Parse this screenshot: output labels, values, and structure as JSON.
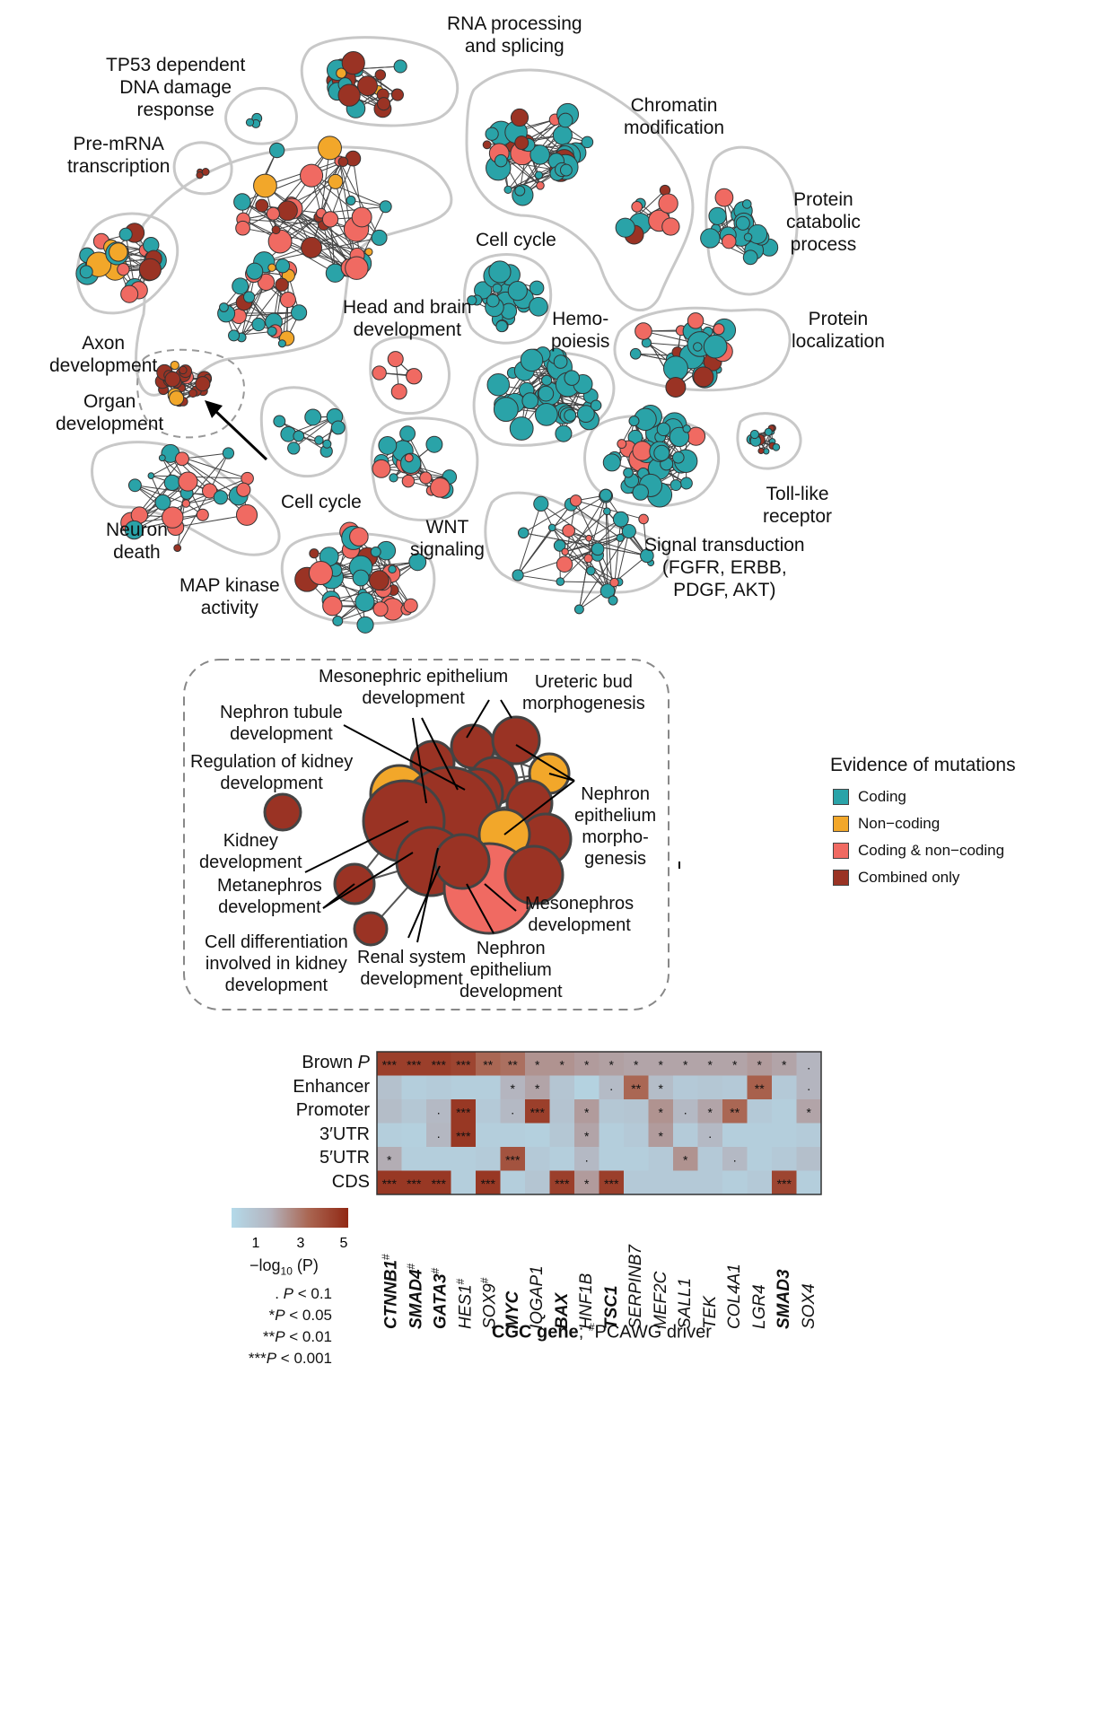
{
  "colors": {
    "coding": "#2aa3a8",
    "noncoding": "#f2a72a",
    "both": "#f06a62",
    "combined": "#9a3324",
    "blob": "#c8c8c8",
    "edge": "#444444"
  },
  "clusters": [
    {
      "id": "tp53",
      "label": "TP53 dependent\nDNA damage\nresponse"
    },
    {
      "id": "rna",
      "label": "RNA processing\nand splicing"
    },
    {
      "id": "chromatin",
      "label": "Chromatin\nmodification"
    },
    {
      "id": "premrna",
      "label": "Pre-mRNA\ntranscription"
    },
    {
      "id": "protcat",
      "label": "Protein\ncatabolic\nprocess"
    },
    {
      "id": "cellcycle1",
      "label": "Cell cycle"
    },
    {
      "id": "axon",
      "label": "Axon\ndevelopment"
    },
    {
      "id": "headbrain",
      "label": "Head and brain\ndevelopment"
    },
    {
      "id": "protloc",
      "label": "Protein\nlocalization"
    },
    {
      "id": "hemo",
      "label": "Hemo-\npoiesis"
    },
    {
      "id": "organ",
      "label": "Organ\ndevelopment"
    },
    {
      "id": "cellcycle2",
      "label": "Cell cycle"
    },
    {
      "id": "tolllike",
      "label": "Toll-like\nreceptor"
    },
    {
      "id": "neuron",
      "label": "Neuron\ndeath"
    },
    {
      "id": "wnt",
      "label": "WNT\nsignaling"
    },
    {
      "id": "signal",
      "label": "Signal transduction\n(FGFR, ERBB,\nPDGF, AKT)"
    },
    {
      "id": "mapk",
      "label": "MAP kinase\nactivity"
    }
  ],
  "legend": {
    "title": "Evidence of mutations",
    "items": [
      "Coding",
      "Non−coding",
      "Coding & non−coding",
      "Combined only"
    ]
  },
  "zoom_labels": [
    "Mesonephric epithelium\ndevelopment",
    "Ureteric bud\nmorphogenesis",
    "Nephron tubule\ndevelopment",
    "Regulation of kidney\ndevelopment",
    "Nephron\nepithelium\nmorpho-\ngenesis",
    "Kidney\ndevelopment",
    "Metanephros\ndevelopment",
    "Mesonephros\ndevelopment",
    "Cell differentiation\ninvolved in kidney\ndevelopment",
    "Renal system\ndevelopment",
    "Nephron\nepithelium\ndevelopment"
  ],
  "chart_data": {
    "type": "heatmap",
    "rows": [
      "Brown P",
      "Enhancer",
      "Promoter",
      "3′UTR",
      "5′UTR",
      "CDS"
    ],
    "columns": [
      "CTNNB1#",
      "SMAD4#",
      "GATA3#",
      "HES1#",
      "SOX9#",
      "MYC",
      "IQGAP1",
      "BAX",
      "HNF1B",
      "TSC1",
      "SERPINB7",
      "MEF2C",
      "SALL1",
      "TEK",
      "COL4A1",
      "LGR4",
      "SMAD3",
      "SOX4"
    ],
    "bold_columns": [
      "CTNNB1#",
      "SMAD4#",
      "GATA3#",
      "MYC",
      "BAX",
      "TSC1",
      "SMAD3"
    ],
    "values": [
      [
        4.8,
        4.8,
        4.8,
        4.6,
        3.6,
        3.4,
        2.6,
        2.6,
        2.4,
        2.3,
        2.2,
        2.2,
        2.2,
        2.2,
        2.2,
        2.4,
        2.2,
        1.8
      ],
      [
        1.2,
        0.6,
        0.7,
        0.6,
        0.6,
        1.8,
        2.2,
        1.0,
        0.4,
        1.5,
        3.6,
        1.4,
        0.8,
        0.9,
        0.8,
        3.8,
        0.8,
        1.8
      ],
      [
        1.4,
        0.9,
        1.6,
        5.0,
        0.8,
        1.6,
        4.8,
        1.1,
        2.4,
        0.9,
        1.0,
        2.6,
        1.6,
        2.2,
        3.6,
        0.8,
        0.6,
        2.2
      ],
      [
        0.6,
        0.5,
        1.7,
        5.0,
        0.6,
        0.6,
        0.5,
        0.9,
        2.2,
        0.6,
        0.8,
        2.4,
        0.7,
        1.6,
        0.6,
        0.6,
        0.6,
        0.7
      ],
      [
        2.0,
        0.6,
        0.6,
        0.6,
        0.7,
        4.2,
        0.8,
        0.6,
        1.6,
        0.6,
        0.6,
        0.8,
        2.6,
        0.8,
        1.6,
        0.6,
        0.8,
        1.3
      ],
      [
        5.0,
        5.0,
        5.0,
        0.6,
        5.0,
        0.6,
        1.0,
        4.8,
        2.4,
        4.8,
        0.8,
        0.8,
        0.8,
        0.8,
        0.6,
        0.8,
        4.6,
        0.6
      ]
    ],
    "stars": [
      [
        "***",
        "***",
        "***",
        "***",
        "**",
        "**",
        "*",
        "*",
        "*",
        "*",
        "*",
        "*",
        "*",
        "*",
        "*",
        "*",
        "*",
        "."
      ],
      [
        "",
        "",
        "",
        "",
        "",
        "*",
        "*",
        "",
        "",
        "·",
        "**",
        "*",
        "",
        "",
        "",
        "**",
        "",
        "·"
      ],
      [
        "",
        "",
        "·",
        "***",
        "",
        "·",
        "***",
        "",
        "*",
        "",
        "",
        "*",
        "·",
        "*",
        "**",
        "",
        "",
        "*"
      ],
      [
        "",
        "",
        "·",
        "***",
        "",
        "",
        "",
        "",
        "*",
        "",
        "",
        "*",
        "",
        "·",
        "",
        "",
        "",
        ""
      ],
      [
        "*",
        "",
        "",
        "",
        "",
        "***",
        "",
        "",
        "·",
        "",
        "",
        "",
        "*",
        "",
        "·",
        "",
        "",
        ""
      ],
      [
        "***",
        "***",
        "***",
        "",
        "***",
        "",
        "",
        "***",
        "*",
        "***",
        "",
        "",
        "",
        "",
        "",
        "",
        "***",
        ""
      ]
    ],
    "colorbar": {
      "ticks": [
        "1",
        "3",
        "5"
      ],
      "label": "−log10 (P)",
      "min": 0,
      "max": 5.5
    },
    "significance": [
      ". P < 0.1",
      "*P < 0.05",
      "**P < 0.01",
      "***P < 0.001"
    ],
    "xlabel_bold": "CGC gene",
    "xlabel_rest": "; #PCAWG driver"
  }
}
